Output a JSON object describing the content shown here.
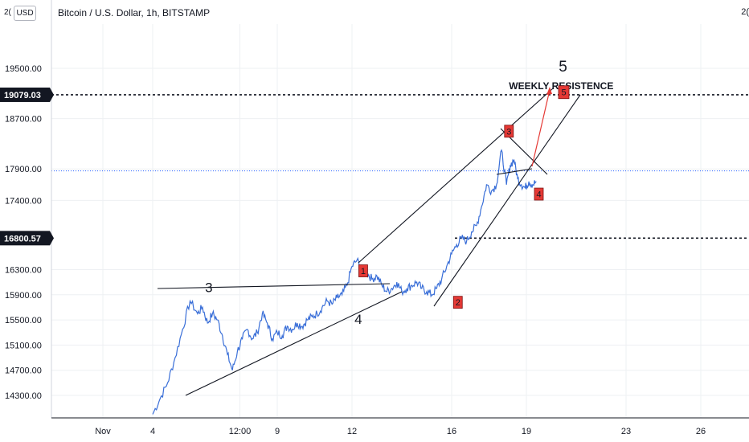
{
  "header": {
    "symbol_title": "Bitcoin / U.S. Dollar, 1h, BITSTAMP",
    "currency_button": "USD",
    "currency_prefix": "2(",
    "top_right_fragment": "2("
  },
  "colors": {
    "price_line": "#3a6fd8",
    "annotation_red": "#e53935",
    "trendline": "#131722",
    "current_price_line": "#2962ff",
    "grid": "#eef0f3",
    "price_tag_bg": "#131722",
    "price_tag_text": "#ffffff"
  },
  "chart_data": {
    "type": "line",
    "title": "Bitcoin / U.S. Dollar, 1h, BITSTAMP",
    "y_ticks": [
      19500,
      18700,
      17900,
      17400,
      16300,
      15900,
      15500,
      15100,
      14700,
      14300
    ],
    "y_tick_labels": [
      "19500.00",
      "18700.00",
      "17900.00",
      "17400.00",
      "16300.00",
      "15900.00",
      "15500.00",
      "15100.00",
      "14700.00",
      "14300.00"
    ],
    "x_ticks": [
      2,
      4,
      7.5,
      9,
      12,
      16,
      19,
      23,
      26
    ],
    "x_tick_labels": [
      "Nov",
      "4",
      "12:00",
      "9",
      "12",
      "16",
      "19",
      "23",
      "26"
    ],
    "ylim": [
      13950,
      19900
    ],
    "xlim": [
      0.5,
      27.8
    ],
    "current_price": 17870,
    "price_tags": [
      {
        "value": 19079,
        "label": "19079.03"
      },
      {
        "value": 16800,
        "label": "16800.57"
      }
    ],
    "series": [
      {
        "x": [
          4.0,
          4.3,
          4.6,
          4.9,
          5.2,
          5.5,
          5.8,
          6.0,
          6.2,
          6.4,
          6.6,
          6.8,
          7.0,
          7.2,
          7.4,
          7.6,
          7.8,
          8.0,
          8.2,
          8.4,
          8.6,
          8.8,
          9.0,
          9.2,
          9.4,
          9.6,
          9.8,
          10.0,
          10.2,
          10.4,
          10.6,
          10.8,
          11.0,
          11.2,
          11.4,
          11.6,
          11.8,
          12.0,
          12.2,
          12.4,
          12.6,
          12.8,
          13.0,
          13.2,
          13.4,
          13.6,
          13.8,
          14.0,
          14.2,
          14.4,
          14.6,
          14.8,
          15.0,
          15.2,
          15.4,
          15.6,
          15.8,
          16.0,
          16.2,
          16.4,
          16.6,
          16.8,
          17.0,
          17.2,
          17.4,
          17.6,
          17.8,
          18.0,
          18.2,
          18.35,
          18.5,
          18.65,
          18.8,
          18.95,
          19.1,
          19.25,
          19.4
        ],
        "y": [
          14000,
          14250,
          14500,
          14900,
          15350,
          15800,
          15600,
          15700,
          15450,
          15600,
          15500,
          15250,
          14950,
          14700,
          15000,
          15200,
          15350,
          15200,
          15300,
          15600,
          15450,
          15200,
          15300,
          15250,
          15400,
          15350,
          15450,
          15400,
          15500,
          15550,
          15600,
          15700,
          15800,
          15750,
          15850,
          15900,
          16050,
          16350,
          16450,
          16300,
          16250,
          16150,
          16200,
          16050,
          15950,
          16000,
          16100,
          15950,
          16000,
          16050,
          16100,
          16000,
          15950,
          15900,
          16000,
          16150,
          16350,
          16550,
          16700,
          16800,
          16750,
          16900,
          17000,
          17300,
          17650,
          17550,
          17650,
          18200,
          17650,
          17950,
          18050,
          17750,
          17650,
          17600,
          17700,
          17650,
          17700
        ],
        "label": ""
      }
    ],
    "annotations": {
      "labels": [
        {
          "text": "3",
          "x": 6.1,
          "y": 15940
        },
        {
          "text": "4",
          "x": 12.1,
          "y": 15440
        },
        {
          "text": "5",
          "x": 20.3,
          "y": 19450
        },
        {
          "text": "WEEKLY RESISTENCE",
          "x": 18.3,
          "y": 19170
        }
      ],
      "boxes": [
        {
          "text": "1",
          "x": 12.45,
          "y": 16280
        },
        {
          "text": "2",
          "x": 16.25,
          "y": 15780
        },
        {
          "text": "3",
          "x": 18.3,
          "y": 18500
        },
        {
          "text": "4",
          "x": 19.5,
          "y": 17500
        },
        {
          "text": "5",
          "x": 20.5,
          "y": 19120
        }
      ]
    }
  }
}
